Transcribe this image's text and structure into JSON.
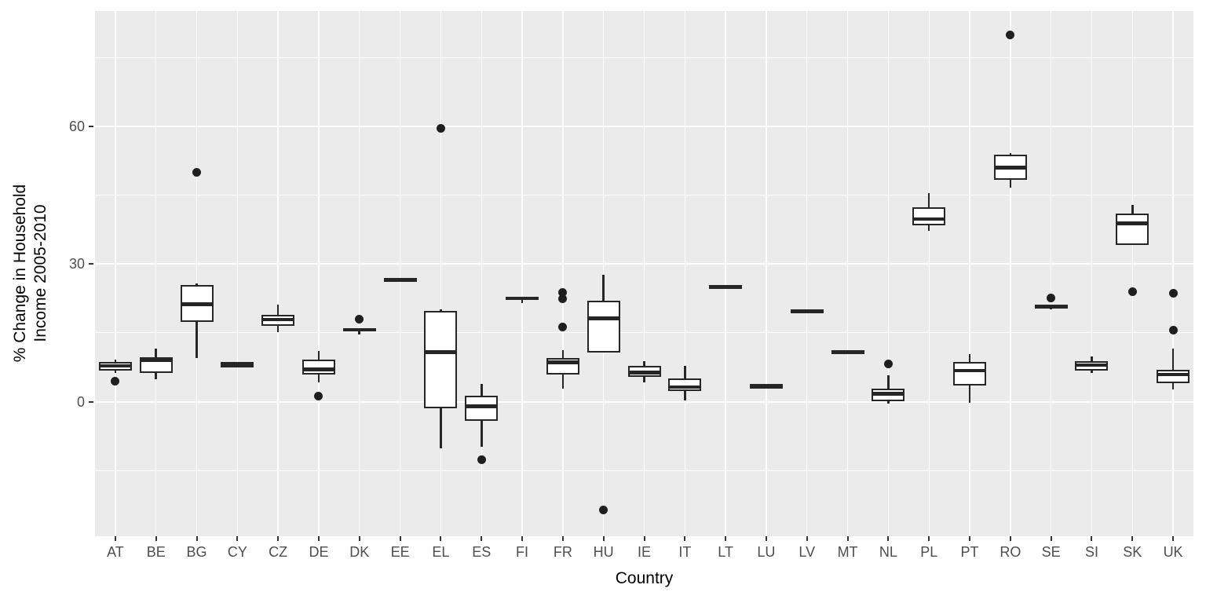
{
  "figure": {
    "x_axis_title": "Country",
    "y_axis_title_lines": [
      "% Change in Household",
      "Income 2005-2010"
    ]
  },
  "colors": {
    "panel_background": "#EBEBEB",
    "gridline": "#FFFFFF",
    "box_stroke": "#262626",
    "box_fill": "#FFFFFF",
    "outlier": "#1F1F1F",
    "axis_text": "#4D4D4D",
    "axis_title": "#000000",
    "tick_mark": "#333333"
  },
  "chart_data": {
    "type": "boxplot",
    "title": "",
    "xlabel": "Country",
    "ylabel": "% Change in Household Income 2005-2010",
    "ylim": [
      -29.3,
      85.1
    ],
    "grid": "on",
    "y_ticks": [
      {
        "label": "60",
        "value": 60
      },
      {
        "label": "30",
        "value": 30
      },
      {
        "label": "0",
        "value": 0
      }
    ],
    "y_major_gridlines": [
      60,
      30,
      0
    ],
    "y_minor_gridlines": [
      75,
      45,
      15,
      -15
    ],
    "categories": [
      "AT",
      "BE",
      "BG",
      "CY",
      "CZ",
      "DE",
      "DK",
      "EE",
      "EL",
      "ES",
      "FI",
      "FR",
      "HU",
      "IE",
      "IT",
      "LT",
      "LU",
      "LV",
      "MT",
      "NL",
      "PL",
      "PT",
      "RO",
      "SE",
      "SI",
      "SK",
      "UK"
    ],
    "series": [
      {
        "country": "AT",
        "whisker_low": 6.3,
        "q1": 6.8,
        "median": 7.8,
        "q3": 8.6,
        "whisker_high": 9.2,
        "outliers": [
          4.4
        ]
      },
      {
        "country": "BE",
        "whisker_low": 4.9,
        "q1": 6.3,
        "median": 9.1,
        "q3": 9.7,
        "whisker_high": 11.6,
        "outliers": []
      },
      {
        "country": "BG",
        "whisker_low": 9.6,
        "q1": 17.4,
        "median": 21.2,
        "q3": 25.5,
        "whisker_high": 25.8,
        "outliers": [
          50.0
        ]
      },
      {
        "country": "CY",
        "whisker_low": 8.2,
        "q1": 8.2,
        "median": 8.2,
        "q3": 8.2,
        "whisker_high": 8.2,
        "outliers": []
      },
      {
        "country": "CZ",
        "whisker_low": 15.1,
        "q1": 16.6,
        "median": 17.9,
        "q3": 19.0,
        "whisker_high": 21.1,
        "outliers": []
      },
      {
        "country": "DE",
        "whisker_low": 4.3,
        "q1": 6.0,
        "median": 7.0,
        "q3": 9.1,
        "whisker_high": 11.1,
        "outliers": [
          1.3
        ]
      },
      {
        "country": "DK",
        "whisker_low": 14.7,
        "q1": 15.3,
        "median": 15.7,
        "q3": 16.1,
        "whisker_high": 16.1,
        "outliers": [
          17.9
        ]
      },
      {
        "country": "EE",
        "whisker_low": 26.4,
        "q1": 26.4,
        "median": 26.6,
        "q3": 26.8,
        "whisker_high": 26.8,
        "outliers": []
      },
      {
        "country": "EL",
        "whisker_low": -10.2,
        "q1": -1.5,
        "median": 10.8,
        "q3": 19.8,
        "whisker_high": 20.1,
        "outliers": [
          59.5
        ]
      },
      {
        "country": "ES",
        "whisker_low": -9.8,
        "q1": -4.2,
        "median": -1.0,
        "q3": 1.3,
        "whisker_high": 3.8,
        "outliers": [
          -12.7
        ]
      },
      {
        "country": "FI",
        "whisker_low": 21.5,
        "q1": 22.2,
        "median": 22.5,
        "q3": 22.8,
        "whisker_high": 22.8,
        "outliers": []
      },
      {
        "country": "FR",
        "whisker_low": 2.9,
        "q1": 6.0,
        "median": 8.6,
        "q3": 9.6,
        "whisker_high": 11.3,
        "outliers": [
          16.3,
          22.5,
          23.8
        ]
      },
      {
        "country": "HU",
        "whisker_low": 10.7,
        "q1": 10.7,
        "median": 18.2,
        "q3": 22.0,
        "whisker_high": 27.6,
        "outliers": [
          -23.5
        ]
      },
      {
        "country": "IE",
        "whisker_low": 4.2,
        "q1": 5.4,
        "median": 6.4,
        "q3": 7.8,
        "whisker_high": 8.8,
        "outliers": []
      },
      {
        "country": "IT",
        "whisker_low": 0.3,
        "q1": 2.3,
        "median": 3.2,
        "q3": 5.1,
        "whisker_high": 7.8,
        "outliers": []
      },
      {
        "country": "LT",
        "whisker_low": 24.8,
        "q1": 24.8,
        "median": 25.0,
        "q3": 25.2,
        "whisker_high": 25.2,
        "outliers": []
      },
      {
        "country": "LU",
        "whisker_low": 3.2,
        "q1": 3.2,
        "median": 3.4,
        "q3": 3.6,
        "whisker_high": 3.6,
        "outliers": []
      },
      {
        "country": "LV",
        "whisker_low": 19.6,
        "q1": 19.6,
        "median": 19.8,
        "q3": 20.0,
        "whisker_high": 20.0,
        "outliers": []
      },
      {
        "country": "MT",
        "whisker_low": 10.7,
        "q1": 10.7,
        "median": 10.9,
        "q3": 11.1,
        "whisker_high": 11.1,
        "outliers": []
      },
      {
        "country": "NL",
        "whisker_low": -0.4,
        "q1": 0.1,
        "median": 1.7,
        "q3": 2.9,
        "whisker_high": 5.7,
        "outliers": [
          8.2
        ]
      },
      {
        "country": "PL",
        "whisker_low": 37.3,
        "q1": 38.4,
        "median": 39.8,
        "q3": 42.3,
        "whisker_high": 45.4,
        "outliers": []
      },
      {
        "country": "PT",
        "whisker_low": -0.3,
        "q1": 3.6,
        "median": 6.8,
        "q3": 8.7,
        "whisker_high": 10.3,
        "outliers": []
      },
      {
        "country": "RO",
        "whisker_low": 46.7,
        "q1": 48.3,
        "median": 51.0,
        "q3": 53.8,
        "whisker_high": 54.1,
        "outliers": [
          79.9
        ]
      },
      {
        "country": "SE",
        "whisker_low": 20.1,
        "q1": 20.4,
        "median": 20.7,
        "q3": 21.0,
        "whisker_high": 21.0,
        "outliers": [
          22.6
        ]
      },
      {
        "country": "SI",
        "whisker_low": 6.3,
        "q1": 6.8,
        "median": 8.0,
        "q3": 8.9,
        "whisker_high": 9.9,
        "outliers": []
      },
      {
        "country": "SK",
        "whisker_low": 34.1,
        "q1": 34.1,
        "median": 38.8,
        "q3": 40.9,
        "whisker_high": 42.9,
        "outliers": [
          23.9
        ]
      },
      {
        "country": "UK",
        "whisker_low": 2.6,
        "q1": 4.0,
        "median": 5.9,
        "q3": 7.0,
        "whisker_high": 11.6,
        "outliers": [
          15.6,
          23.7
        ]
      }
    ]
  }
}
